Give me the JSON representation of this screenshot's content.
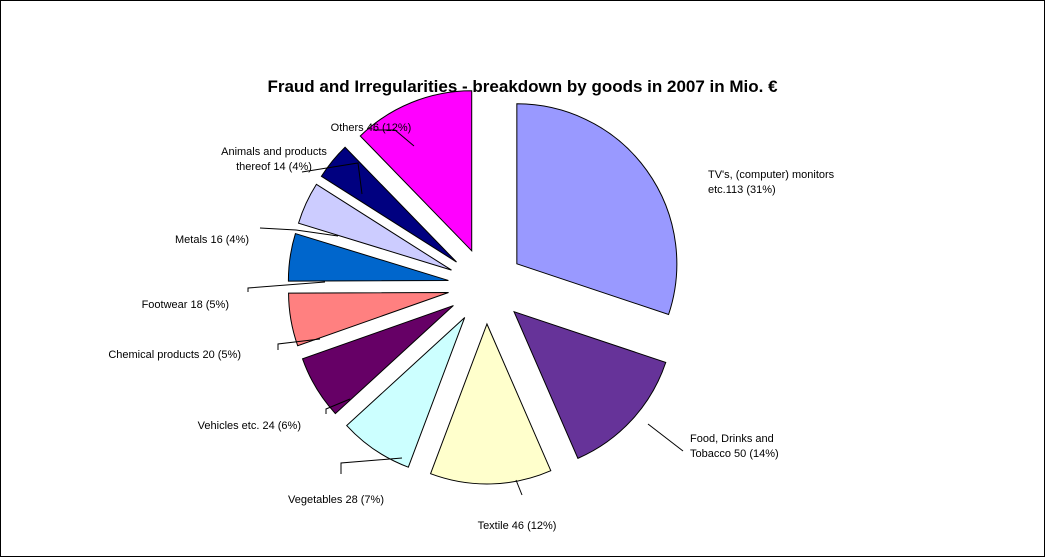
{
  "chart_data": {
    "type": "pie",
    "title": "Fraud and Irregularities - breakdown by goods in 2007 in Mio. €",
    "exploded": true,
    "slices": [
      {
        "name": "TV's, (computer) monitors",
        "value": 113,
        "percent": 31,
        "color": "#9999FF",
        "label_lines": [
          "TV's, (computer) monitors",
          "etc.113 (31%)"
        ]
      },
      {
        "name": "Food, Drinks and Tobacco",
        "value": 50,
        "percent": 14,
        "color": "#663399",
        "label_lines": [
          "Food, Drinks and",
          "Tobacco 50 (14%)"
        ]
      },
      {
        "name": "Textile",
        "value": 46,
        "percent": 12,
        "color": "#FFFFCC",
        "label_lines": [
          "Textile 46 (12%)"
        ]
      },
      {
        "name": "Vegetables",
        "value": 28,
        "percent": 7,
        "color": "#CCFFFF",
        "label_lines": [
          "Vegetables 28 (7%)"
        ]
      },
      {
        "name": "Vehicles etc.",
        "value": 24,
        "percent": 6,
        "color": "#660066",
        "label_lines": [
          "Vehicles etc. 24 (6%)"
        ]
      },
      {
        "name": "Chemical products",
        "value": 20,
        "percent": 5,
        "color": "#FF8080",
        "label_lines": [
          "Chemical products 20 (5%)"
        ]
      },
      {
        "name": "Footwear",
        "value": 18,
        "percent": 5,
        "color": "#0066CC",
        "label_lines": [
          "Footwear 18 (5%)"
        ]
      },
      {
        "name": "Metals",
        "value": 16,
        "percent": 4,
        "color": "#CCCCFF",
        "label_lines": [
          "Metals 16 (4%)"
        ]
      },
      {
        "name": "Animals and products thereof",
        "value": 14,
        "percent": 4,
        "color": "#000080",
        "label_lines": [
          "Animals and products",
          "thereof 14 (4%)"
        ]
      },
      {
        "name": "Others",
        "value": 46,
        "percent": 12,
        "color": "#FF00FF",
        "label_lines": [
          "Others 46 (12%)"
        ]
      }
    ]
  }
}
